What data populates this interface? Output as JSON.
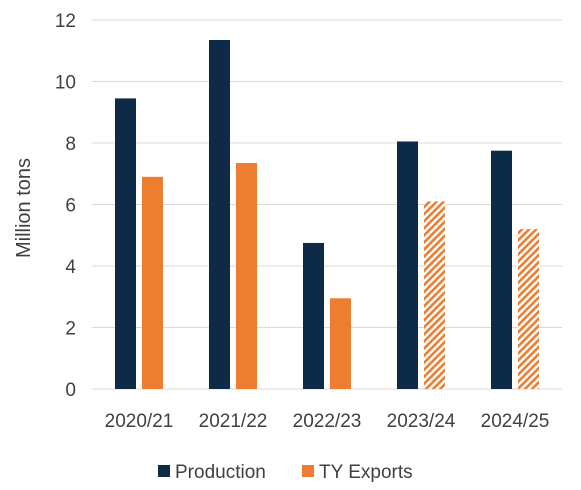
{
  "chart_data": {
    "type": "bar",
    "categories": [
      "2020/21",
      "2021/22",
      "2022/23",
      "2023/24",
      "2024/25"
    ],
    "series": [
      {
        "name": "Production",
        "values": [
          9.45,
          11.35,
          4.75,
          8.05,
          7.75
        ],
        "color": "#0d2a47",
        "pattern": [
          false,
          false,
          false,
          false,
          false
        ]
      },
      {
        "name": "TY Exports",
        "values": [
          6.9,
          7.35,
          2.95,
          6.1,
          5.2
        ],
        "color": "#ed7d31",
        "pattern": [
          false,
          false,
          false,
          true,
          true
        ]
      }
    ],
    "title": "",
    "xlabel": "",
    "ylabel": "Million tons",
    "ylim": [
      0,
      12
    ],
    "yticks": [
      0,
      2,
      4,
      6,
      8,
      10,
      12
    ],
    "grid": "horizontal",
    "legend": "bottom"
  }
}
